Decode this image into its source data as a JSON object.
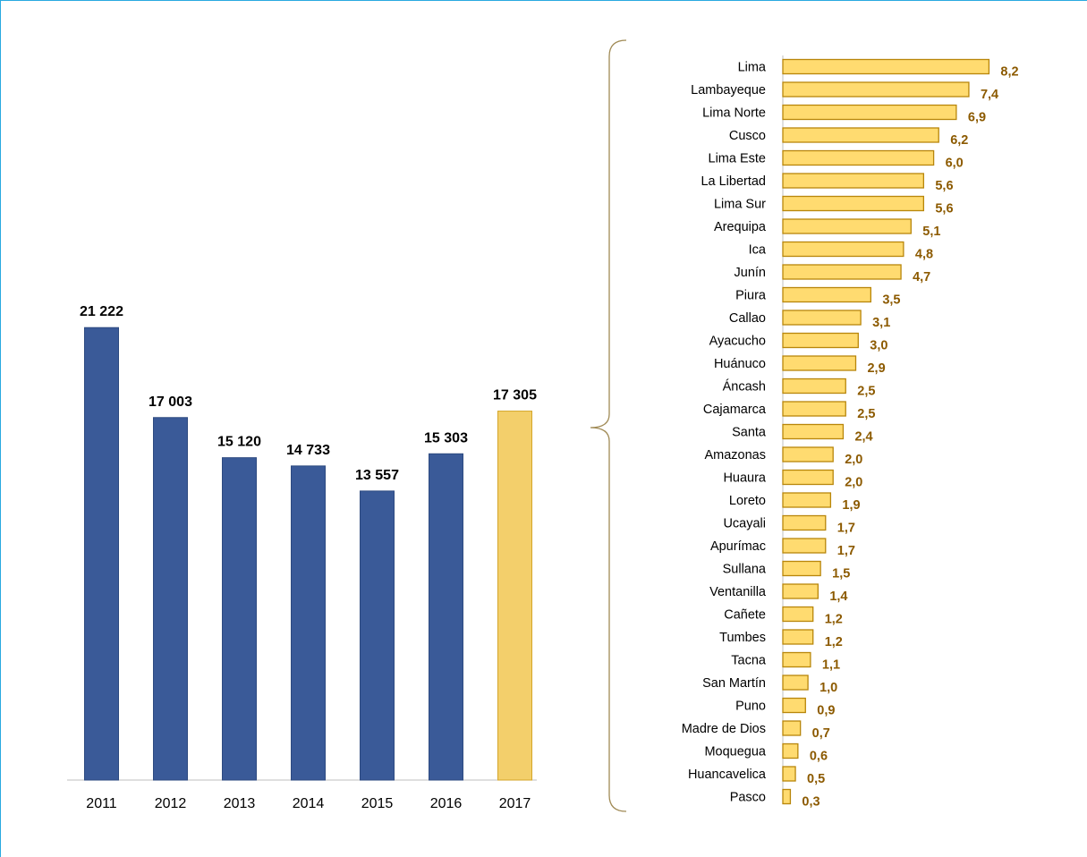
{
  "colors": {
    "bar_primary": "#3a5a98",
    "bar_highlight": "#f3cf6b",
    "hbar_fill": "#ffdb70",
    "hbar_stroke": "#b8860b",
    "hbar_value_text": "#8c5a00",
    "frame_border": "#29a9e0",
    "brace": "#a08a55"
  },
  "chart_data": [
    {
      "type": "bar",
      "categories": [
        "2011",
        "2012",
        "2013",
        "2014",
        "2015",
        "2016",
        "2017"
      ],
      "values": [
        21222,
        17003,
        15120,
        14733,
        13557,
        15303,
        17305
      ],
      "value_labels": [
        "21 222",
        "17 003",
        "15 120",
        "14 733",
        "13 557",
        "15 303",
        "17 305"
      ],
      "highlight_category": "2017",
      "ylim": [
        0,
        24000
      ],
      "grid": false
    },
    {
      "type": "bar",
      "orientation": "horizontal",
      "categories": [
        "Lima",
        "Lambayeque",
        "Lima Norte",
        "Cusco",
        "Lima Este",
        "La Libertad",
        "Lima Sur",
        "Arequipa",
        "Ica",
        "Junín",
        "Piura",
        "Callao",
        "Ayacucho",
        "Huánuco",
        "Áncash",
        "Cajamarca",
        "Santa",
        "Amazonas",
        "Huaura",
        "Loreto",
        "Ucayali",
        "Apurímac",
        "Sullana",
        "Ventanilla",
        "Cañete",
        "Tumbes",
        "Tacna",
        "San Martín",
        "Puno",
        "Madre de Dios",
        "Moquegua",
        "Huancavelica",
        "Pasco"
      ],
      "values": [
        8.2,
        7.4,
        6.9,
        6.2,
        6.0,
        5.6,
        5.6,
        5.1,
        4.8,
        4.7,
        3.5,
        3.1,
        3.0,
        2.9,
        2.5,
        2.5,
        2.4,
        2.0,
        2.0,
        1.9,
        1.7,
        1.7,
        1.5,
        1.4,
        1.2,
        1.2,
        1.1,
        1.0,
        0.9,
        0.7,
        0.6,
        0.5,
        0.3
      ],
      "value_labels": [
        "8,2",
        "7,4",
        "6,9",
        "6,2",
        "6,0",
        "5,6",
        "5,6",
        "5,1",
        "4,8",
        "4,7",
        "3,5",
        "3,1",
        "3,0",
        "2,9",
        "2,5",
        "2,5",
        "2,4",
        "2,0",
        "2,0",
        "1,9",
        "1,7",
        "1,7",
        "1,5",
        "1,4",
        "1,2",
        "1,2",
        "1,1",
        "1,0",
        "0,9",
        "0,7",
        "0,6",
        "0,5",
        "0,3"
      ],
      "xlim": [
        0,
        9
      ],
      "grid": false
    }
  ]
}
